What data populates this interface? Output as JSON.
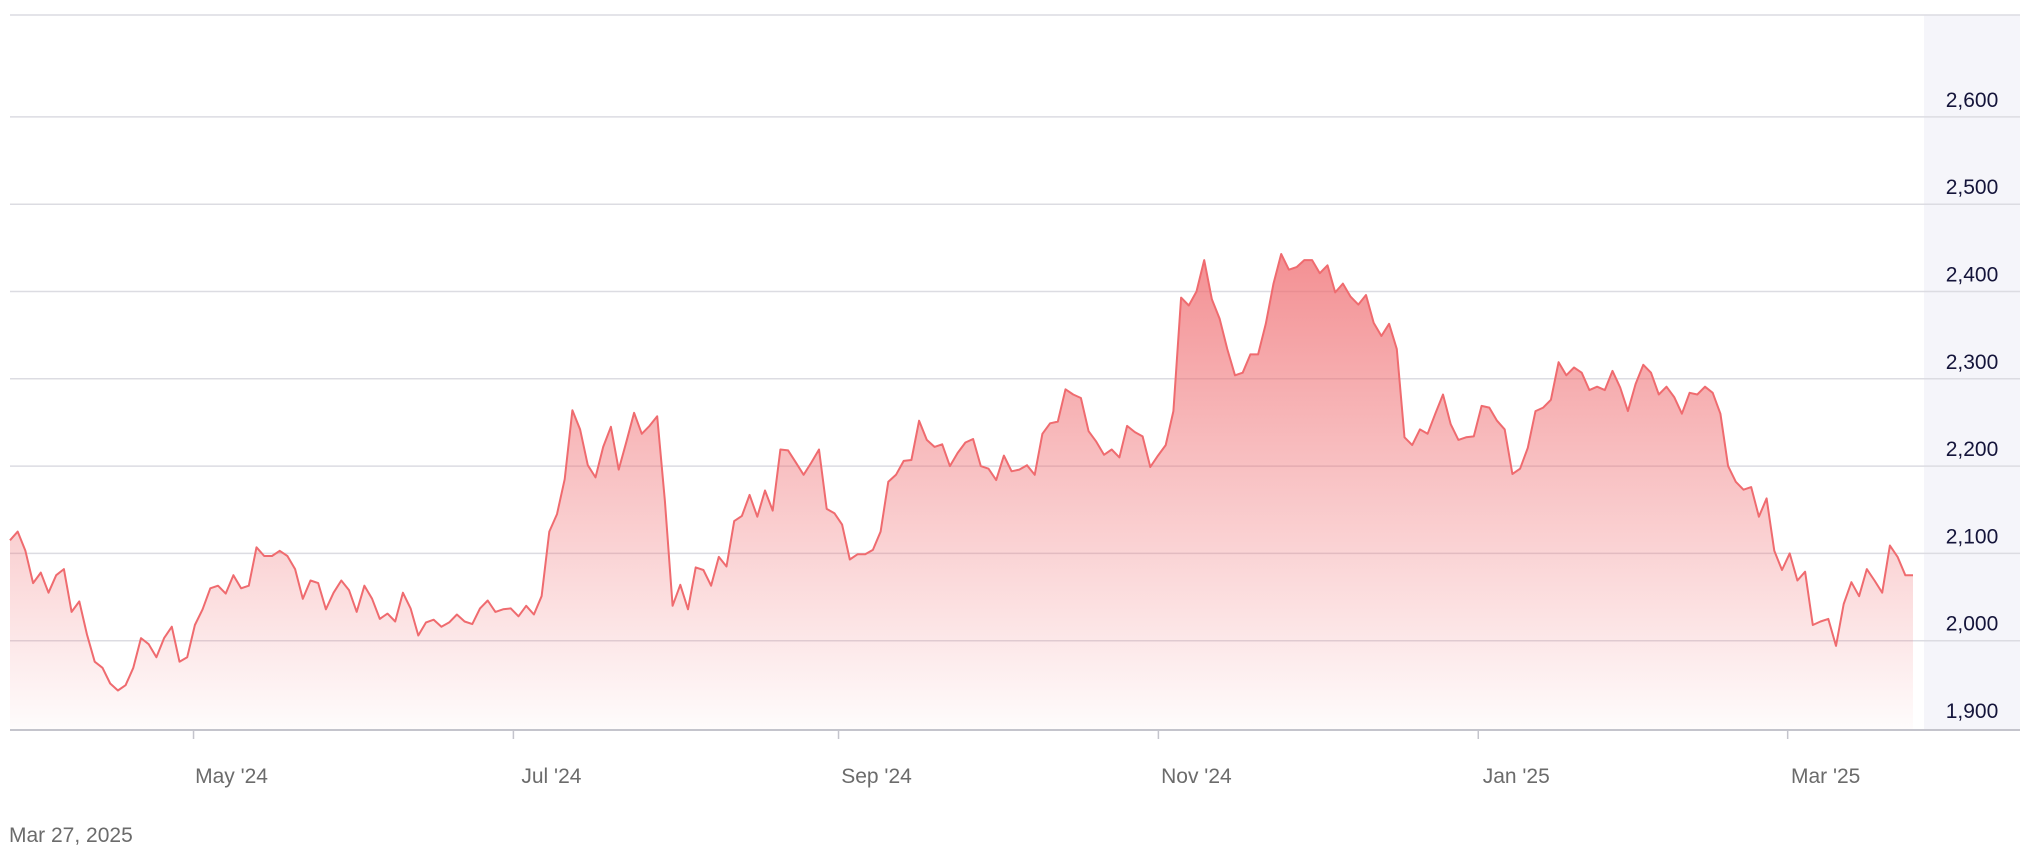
{
  "chart_data": {
    "type": "area",
    "title": "",
    "xlabel": "",
    "ylabel": "",
    "x_range": [
      "2024-03-27",
      "2025-03-27"
    ],
    "ylim": [
      1900,
      2700
    ],
    "y_ticks": [
      1900,
      2000,
      2100,
      2200,
      2300,
      2400,
      2500,
      2600
    ],
    "y_tick_labels": [
      "1,900",
      "2,000",
      "2,100",
      "2,200",
      "2,300",
      "2,400",
      "2,500",
      "2,600"
    ],
    "x_ticks": [
      {
        "date": "2024-05-01",
        "label": "May '24"
      },
      {
        "date": "2024-07-01",
        "label": "Jul '24"
      },
      {
        "date": "2024-09-01",
        "label": "Sep '24"
      },
      {
        "date": "2024-11-01",
        "label": "Nov '24"
      },
      {
        "date": "2025-01-01",
        "label": "Jan '25"
      },
      {
        "date": "2025-03-01",
        "label": "Mar '25"
      }
    ],
    "grid": true,
    "y_axis_position": "right",
    "line_color": "#ef6b6f",
    "fill_color": "#ef6b6f",
    "values": [
      2115,
      2125,
      2103,
      2066,
      2078,
      2055,
      2075,
      2082,
      2033,
      2045,
      2007,
      1976,
      1969,
      1951,
      1943,
      1949,
      1969,
      2003,
      1996,
      1981,
      2003,
      2016,
      1976,
      1981,
      2018,
      2036,
      2060,
      2063,
      2054,
      2075,
      2060,
      2063,
      2107,
      2097,
      2097,
      2103,
      2097,
      2082,
      2048,
      2069,
      2066,
      2036,
      2055,
      2069,
      2058,
      2033,
      2063,
      2048,
      2025,
      2031,
      2022,
      2055,
      2037,
      2006,
      2021,
      2024,
      2016,
      2021,
      2030,
      2022,
      2019,
      2037,
      2046,
      2033,
      2036,
      2037,
      2028,
      2040,
      2030,
      2051,
      2125,
      2145,
      2185,
      2264,
      2242,
      2201,
      2187,
      2222,
      2245,
      2196,
      2228,
      2261,
      2237,
      2246,
      2257,
      2160,
      2040,
      2064,
      2036,
      2084,
      2081,
      2063,
      2096,
      2085,
      2137,
      2143,
      2167,
      2142,
      2172,
      2149,
      2219,
      2218,
      2204,
      2190,
      2204,
      2219,
      2151,
      2146,
      2133,
      2093,
      2099,
      2099,
      2104,
      2125,
      2182,
      2190,
      2206,
      2207,
      2252,
      2230,
      2222,
      2225,
      2200,
      2215,
      2227,
      2231,
      2200,
      2197,
      2184,
      2212,
      2194,
      2196,
      2201,
      2190,
      2237,
      2249,
      2251,
      2288,
      2282,
      2278,
      2240,
      2228,
      2213,
      2219,
      2210,
      2246,
      2239,
      2234,
      2199,
      2212,
      2224,
      2263,
      2393,
      2384,
      2400,
      2436,
      2391,
      2369,
      2334,
      2304,
      2307,
      2328,
      2328,
      2363,
      2409,
      2443,
      2425,
      2428,
      2436,
      2436,
      2421,
      2430,
      2399,
      2409,
      2394,
      2385,
      2396,
      2364,
      2349,
      2363,
      2334,
      2233,
      2224,
      2242,
      2237,
      2260,
      2282,
      2248,
      2230,
      2233,
      2234,
      2269,
      2267,
      2252,
      2242,
      2191,
      2197,
      2221,
      2263,
      2267,
      2276,
      2319,
      2304,
      2313,
      2307,
      2287,
      2291,
      2287,
      2309,
      2290,
      2263,
      2294,
      2316,
      2307,
      2282,
      2291,
      2279,
      2260,
      2284,
      2282,
      2291,
      2284,
      2260,
      2200,
      2182,
      2173,
      2176,
      2142,
      2163,
      2103,
      2081,
      2100,
      2069,
      2079,
      2018,
      2022,
      2025,
      1994,
      2042,
      2067,
      2051,
      2082,
      2069,
      2055,
      2109,
      2096,
      2075,
      2075
    ]
  },
  "footer": {
    "date_label": "Mar 27, 2025"
  }
}
